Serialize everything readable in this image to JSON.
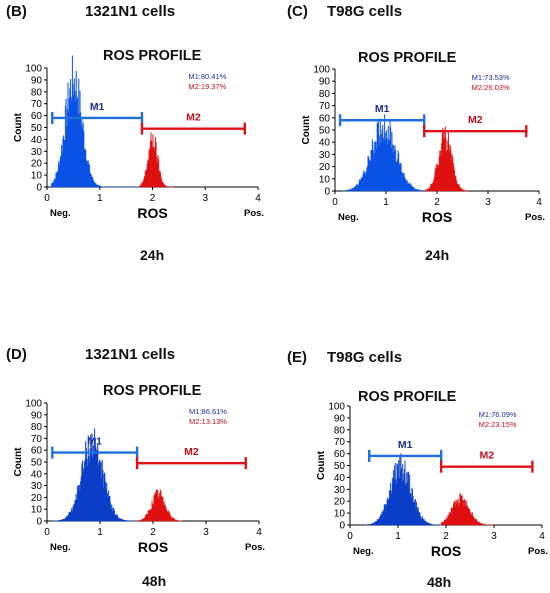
{
  "panels": [
    {
      "panel_label": "(B)",
      "cell_line": "1321N1 cells",
      "time_label": "24h"
    },
    {
      "panel_label": "(C)",
      "cell_line": "T98G cells",
      "time_label": "24h"
    },
    {
      "panel_label": "(D)",
      "cell_line": "1321N1 cells",
      "time_label": "48h"
    },
    {
      "panel_label": "(E)",
      "cell_line": "T98G cells",
      "time_label": "48h"
    }
  ],
  "chart_data": [
    {
      "type": "area",
      "title": "ROS PROFILE",
      "xlabel": "ROS",
      "ylabel": "Count",
      "x_tick_labels": [
        "0",
        "1",
        "2",
        "3",
        "4"
      ],
      "y_tick_labels": [
        "0",
        "10",
        "20",
        "30",
        "40",
        "50",
        "60",
        "70",
        "80",
        "90",
        "100"
      ],
      "x_extra_labels": [
        "Neg.",
        "Pos."
      ],
      "xlim": [
        0,
        4
      ],
      "ylim": [
        0,
        100
      ],
      "gates": [
        {
          "name": "M1",
          "range": [
            0.1,
            1.8
          ],
          "percent_label": "M1:80.41%",
          "color": "#1e6fe0"
        },
        {
          "name": "M2",
          "range": [
            1.8,
            3.75
          ],
          "percent_label": "M2:19.37%",
          "color": "#e0101a"
        }
      ],
      "series": [
        {
          "name": "M1",
          "color": "#0a52e6",
          "peaks": [
            {
              "center": 0.5,
              "sd": 0.16,
              "height": 92
            }
          ],
          "range": [
            0.08,
            1.75
          ]
        },
        {
          "name": "M2",
          "color": "#e01010",
          "peaks": [
            {
              "center": 2.0,
              "sd": 0.09,
              "height": 41
            }
          ],
          "range": [
            1.75,
            2.4
          ]
        }
      ]
    },
    {
      "type": "area",
      "title": "ROS PROFILE",
      "xlabel": "ROS",
      "ylabel": "Count",
      "x_tick_labels": [
        "0",
        "1",
        "2",
        "3",
        "4"
      ],
      "y_tick_labels": [
        "0",
        "10",
        "20",
        "30",
        "40",
        "50",
        "60",
        "70",
        "80",
        "90",
        "100"
      ],
      "x_extra_labels": [
        "Neg.",
        "Pos."
      ],
      "xlim": [
        0,
        4
      ],
      "ylim": [
        0,
        100
      ],
      "gates": [
        {
          "name": "M1",
          "range": [
            0.1,
            1.75
          ],
          "percent_label": "M1:73.53%",
          "color": "#1e6fe0"
        },
        {
          "name": "M2",
          "range": [
            1.75,
            3.75
          ],
          "percent_label": "M2:26.03%",
          "color": "#e0101a"
        }
      ],
      "series": [
        {
          "name": "M1",
          "color": "#0a52e6",
          "peaks": [
            {
              "center": 0.95,
              "sd": 0.24,
              "height": 54
            }
          ],
          "range": [
            0.15,
            1.75
          ]
        },
        {
          "name": "M2",
          "color": "#e01010",
          "peaks": [
            {
              "center": 2.15,
              "sd": 0.13,
              "height": 45
            }
          ],
          "range": [
            1.75,
            2.6
          ]
        }
      ]
    },
    {
      "type": "area",
      "title": "ROS PROFILE",
      "xlabel": "ROS",
      "ylabel": "Count",
      "x_tick_labels": [
        "0",
        "1",
        "2",
        "3",
        "4"
      ],
      "y_tick_labels": [
        "0",
        "10",
        "20",
        "30",
        "40",
        "50",
        "60",
        "70",
        "80",
        "90",
        "100"
      ],
      "x_extra_labels": [
        "Neg.",
        "Pos."
      ],
      "xlim": [
        0,
        4
      ],
      "ylim": [
        0,
        100
      ],
      "gates": [
        {
          "name": "M1",
          "range": [
            0.1,
            1.7
          ],
          "percent_label": "M1:86.61%",
          "color": "#1e6fe0"
        },
        {
          "name": "M2",
          "range": [
            1.7,
            3.75
          ],
          "percent_label": "M2:13.13%",
          "color": "#e0101a"
        }
      ],
      "series": [
        {
          "name": "M1",
          "color": "#0a3ec8",
          "peaks": [
            {
              "center": 0.85,
              "sd": 0.2,
              "height": 68
            }
          ],
          "range": [
            0.1,
            1.7
          ]
        },
        {
          "name": "M2",
          "color": "#e01010",
          "peaks": [
            {
              "center": 2.1,
              "sd": 0.13,
              "height": 23
            }
          ],
          "range": [
            1.7,
            2.55
          ]
        }
      ]
    },
    {
      "type": "area",
      "title": "ROS PROFILE",
      "xlabel": "ROS",
      "ylabel": "Count",
      "x_tick_labels": [
        "0",
        "1",
        "2",
        "3",
        "4"
      ],
      "y_tick_labels": [
        "0",
        "10",
        "20",
        "30",
        "40",
        "50",
        "60",
        "70",
        "80",
        "90",
        "100"
      ],
      "x_extra_labels": [
        "Neg.",
        "Pos."
      ],
      "xlim": [
        0,
        4
      ],
      "ylim": [
        0,
        100
      ],
      "gates": [
        {
          "name": "M1",
          "range": [
            0.4,
            1.9
          ],
          "percent_label": "M1:76.09%",
          "color": "#1e6fe0"
        },
        {
          "name": "M2",
          "range": [
            1.9,
            3.8
          ],
          "percent_label": "M2:23.15%",
          "color": "#e0101a"
        }
      ],
      "series": [
        {
          "name": "M1",
          "color": "#0a3ec8",
          "peaks": [
            {
              "center": 1.05,
              "sd": 0.22,
              "height": 50
            }
          ],
          "range": [
            0.3,
            1.9
          ]
        },
        {
          "name": "M2",
          "color": "#e01010",
          "peaks": [
            {
              "center": 2.3,
              "sd": 0.18,
              "height": 22
            }
          ],
          "range": [
            1.9,
            3.0
          ]
        }
      ]
    }
  ]
}
